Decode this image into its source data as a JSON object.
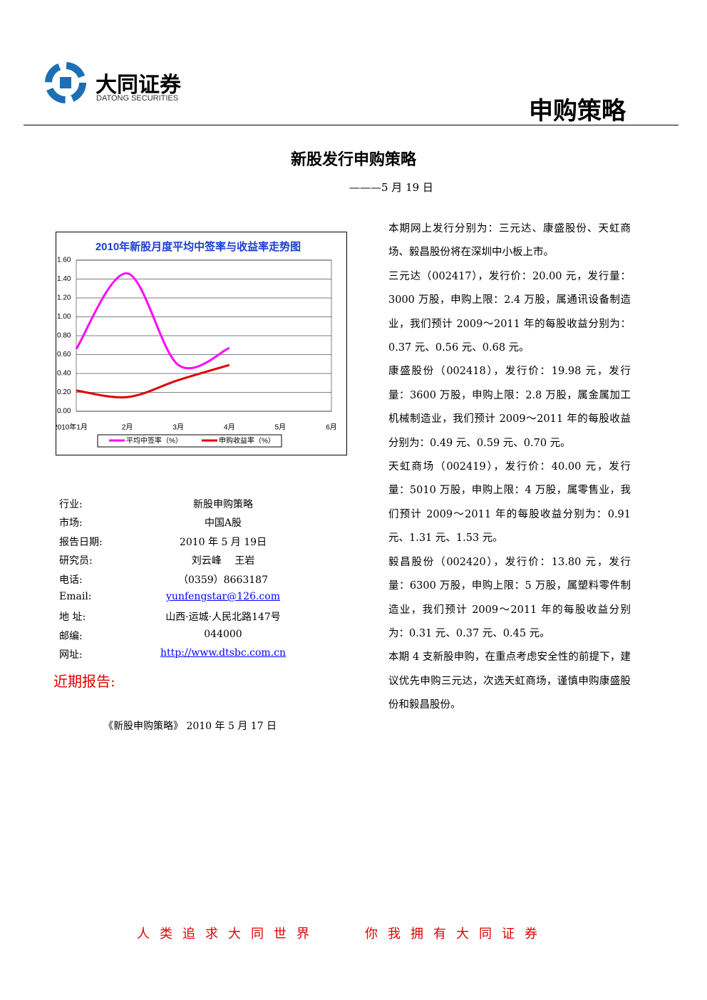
{
  "header": {
    "logo_cn": "大同证券",
    "logo_en": "DATONG SECURITIES",
    "section": "申购策略"
  },
  "title": "新股发行申购策略",
  "subtitle": "———5 月 19 日",
  "chart_data": {
    "type": "line",
    "title": "2010年新股月度平均中签率与收益率走势图",
    "categories": [
      "2010年1月",
      "2月",
      "3月",
      "4月",
      "5月",
      "6月"
    ],
    "series": [
      {
        "name": "平均中签率（%）",
        "color": "#ff00ff",
        "values": [
          0.66,
          1.46,
          0.49,
          0.67,
          null,
          null
        ]
      },
      {
        "name": "申购收益率（%）",
        "color": "#e00000",
        "values": [
          0.22,
          0.15,
          0.33,
          0.49,
          null,
          null
        ]
      }
    ],
    "ylim": [
      0,
      1.6
    ],
    "yticks": [
      {
        "value": 0,
        "label": "0.00"
      },
      {
        "value": 0.2,
        "label": "0.20"
      },
      {
        "value": 0.4,
        "label": "0.40"
      },
      {
        "value": 0.6,
        "label": "0.60"
      },
      {
        "value": 0.8,
        "label": "0.80"
      },
      {
        "value": 1,
        "label": "1.00"
      },
      {
        "value": 1.2,
        "label": "1.20"
      },
      {
        "value": 1.4,
        "label": "1.40"
      },
      {
        "value": 1.6,
        "label": "1.60"
      }
    ],
    "grid": true,
    "legend": "bottom"
  },
  "info": {
    "rows": [
      [
        "行业:",
        "新股申购策略"
      ],
      [
        "市场:",
        "中国A股"
      ],
      [
        "报告日期:",
        "2010 年 5 月 19日"
      ],
      [
        "研究员:",
        "刘云峰　 王岩"
      ],
      [
        "电话:",
        "（0359）8663187"
      ],
      [
        "Email:",
        "yunfengstar@126.com"
      ],
      [
        "地 址:",
        "山西·运城·人民北路147号"
      ],
      [
        "邮编:",
        "044000"
      ],
      [
        "网址:",
        "http://www.dtsbc.com.cn"
      ]
    ]
  },
  "recent": {
    "heading": "近期报告:",
    "items": [
      "《新股申购策略》 2010 年 5 月 17 日"
    ]
  },
  "body": {
    "paragraphs": [
      "本期网上发行分别为：三元达、康盛股份、天虹商场、毅昌股份将在深圳中小板上市。",
      "三元达（002417），发行价：20.00 元，发行量：3000 万股，申购上限：2.4 万股，属通讯设备制造业，我们预计 2009～2011 年的每股收益分别为：0.37 元、0.56 元、0.68 元。",
      "康盛股份（002418），发行价：19.98 元，发行量：3600 万股，申购上限：2.8 万股，属金属加工机械制造业，我们预计 2009～2011 年的每股收益分别为：0.49 元、0.59 元、0.70 元。",
      "天虹商场（002419），发行价：40.00 元，发行量：5010 万股，申购上限：4 万股，属零售业，我们预计 2009～2011 年的每股收益分别为：0.91 元、1.31 元、1.53 元。",
      "毅昌股份（002420），发行价：13.80 元，发行量：6300 万股，申购上限：5 万股，属塑料零件制造业，我们预计 2009～2011 年的每股收益分别为：0.31 元、0.37 元、0.45 元。",
      "本期 4 支新股申购，在重点考虑安全性的前提下，建议优先申购三元达，次选天虹商场，谨慎申购康盛股份和毅昌股份。"
    ]
  },
  "footer": "人类追求大同世界　　你我拥有大同证券"
}
